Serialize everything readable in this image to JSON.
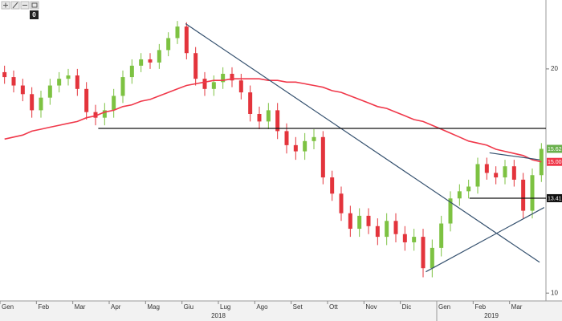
{
  "chart_data": {
    "type": "candlestick",
    "badge": "0",
    "categories": [
      "Gen",
      null,
      null,
      null,
      "Feb",
      null,
      null,
      null,
      "Mar",
      null,
      null,
      null,
      "Apr",
      null,
      null,
      null,
      "Mag",
      null,
      null,
      null,
      "Giu",
      null,
      null,
      null,
      "Lug",
      null,
      null,
      null,
      "Ago",
      null,
      null,
      null,
      "Set",
      null,
      null,
      null,
      "Ott",
      null,
      null,
      null,
      "Nov",
      null,
      null,
      null,
      "Dic",
      null,
      null,
      null,
      "Gen",
      null,
      null,
      null,
      "Feb",
      null,
      null,
      null,
      "Mar",
      null,
      null,
      null
    ],
    "years": [
      "2018",
      "2019"
    ],
    "open": [
      19.8,
      19.5,
      19.0,
      18.5,
      17.6,
      18.3,
      19.0,
      19.4,
      19.6,
      18.8,
      17.5,
      17.2,
      17.6,
      18.4,
      19.5,
      20.2,
      20.6,
      20.4,
      21.2,
      22.0,
      22.8,
      21.0,
      19.4,
      18.8,
      19.2,
      19.7,
      19.3,
      18.6,
      17.4,
      17.0,
      17.6,
      16.5,
      15.8,
      15.5,
      16.0,
      16.2,
      14.3,
      13.6,
      12.8,
      12.2,
      12.7,
      12.3,
      11.9,
      12.5,
      12.0,
      11.7,
      11.9,
      10.8,
      11.5,
      12.4,
      13.4,
      13.7,
      13.9,
      14.9,
      14.5,
      14.3,
      14.8,
      14.2,
      12.9,
      14.4
    ],
    "high": [
      20.2,
      19.9,
      19.4,
      18.9,
      18.7,
      19.4,
      19.8,
      20.0,
      20.0,
      19.2,
      17.9,
      18.0,
      18.8,
      19.9,
      20.6,
      21.0,
      21.0,
      21.6,
      22.4,
      23.2,
      23.1,
      21.4,
      19.8,
      19.6,
      20.1,
      20.1,
      19.7,
      19.0,
      17.8,
      18.0,
      18.0,
      16.9,
      16.2,
      16.4,
      16.6,
      16.5,
      14.6,
      13.9,
      13.1,
      13.0,
      13.0,
      12.6,
      12.8,
      12.8,
      12.3,
      12.2,
      12.2,
      11.8,
      12.7,
      13.7,
      14.0,
      14.2,
      15.2,
      15.2,
      14.8,
      15.1,
      15.1,
      14.5,
      14.7,
      15.9
    ],
    "low": [
      19.1,
      18.6,
      18.1,
      17.2,
      17.2,
      17.9,
      18.6,
      19.0,
      18.4,
      17.1,
      16.8,
      16.8,
      17.2,
      18.0,
      19.1,
      19.8,
      20.0,
      20.0,
      20.8,
      21.6,
      20.6,
      19.0,
      18.4,
      18.4,
      18.8,
      18.9,
      18.2,
      17.0,
      16.6,
      16.6,
      16.1,
      15.4,
      15.1,
      15.1,
      15.6,
      14.0,
      13.3,
      12.5,
      11.9,
      11.9,
      12.0,
      11.6,
      11.6,
      11.7,
      11.4,
      11.4,
      10.5,
      10.5,
      11.2,
      12.1,
      13.1,
      13.4,
      13.6,
      14.2,
      14.0,
      14.0,
      13.9,
      12.6,
      12.6,
      14.1
    ],
    "close": [
      19.5,
      19.0,
      18.5,
      17.6,
      18.3,
      19.0,
      19.4,
      19.6,
      18.8,
      17.5,
      17.2,
      17.6,
      18.4,
      19.5,
      20.2,
      20.6,
      20.4,
      21.2,
      22.0,
      22.8,
      21.0,
      19.4,
      18.8,
      19.2,
      19.7,
      19.3,
      18.6,
      17.4,
      17.0,
      17.6,
      16.5,
      15.8,
      15.5,
      16.0,
      16.2,
      14.3,
      13.6,
      12.8,
      12.2,
      12.7,
      12.3,
      11.9,
      12.5,
      12.0,
      11.7,
      11.9,
      10.8,
      11.5,
      12.4,
      13.4,
      13.7,
      13.9,
      14.9,
      14.5,
      14.3,
      14.8,
      14.2,
      12.9,
      14.4,
      15.62
    ],
    "up_color": "#7dc242",
    "down_color": "#e3343c",
    "close_label_color": "#6ab04c",
    "moving_average": {
      "color": "#f0384a",
      "values": [
        16.1,
        16.2,
        16.3,
        16.5,
        16.6,
        16.7,
        16.8,
        16.9,
        17.0,
        17.2,
        17.3,
        17.5,
        17.6,
        17.8,
        17.9,
        18.1,
        18.2,
        18.4,
        18.6,
        18.8,
        19.0,
        19.1,
        19.2,
        19.3,
        19.3,
        19.4,
        19.4,
        19.4,
        19.4,
        19.3,
        19.3,
        19.2,
        19.2,
        19.1,
        19.0,
        18.9,
        18.7,
        18.6,
        18.4,
        18.2,
        18.0,
        17.8,
        17.7,
        17.5,
        17.3,
        17.1,
        17.0,
        16.8,
        16.6,
        16.4,
        16.2,
        16.0,
        15.9,
        15.8,
        15.6,
        15.5,
        15.4,
        15.3,
        15.1,
        15.003
      ]
    },
    "trend_lines": [
      {
        "x": [
          20.4,
          59.3
        ],
        "y": [
          23.0,
          11.0
        ],
        "color": "#34506e"
      },
      {
        "x": [
          10.8,
          60
        ],
        "y": [
          16.64,
          16.64
        ],
        "color": "#111111"
      },
      {
        "x": [
          46.8,
          59.8
        ],
        "y": [
          10.68,
          13.03
        ],
        "color": "#34506e"
      },
      {
        "x": [
          51.6,
          60
        ],
        "y": [
          13.41,
          13.41
        ],
        "color": "#111111"
      },
      {
        "x": [
          53.8,
          59.3
        ],
        "y": [
          15.43,
          15.1
        ],
        "color": "#34506e"
      }
    ],
    "ylim": [
      9.76,
      24.75
    ],
    "yticks": [
      10,
      20
    ],
    "log": true
  }
}
